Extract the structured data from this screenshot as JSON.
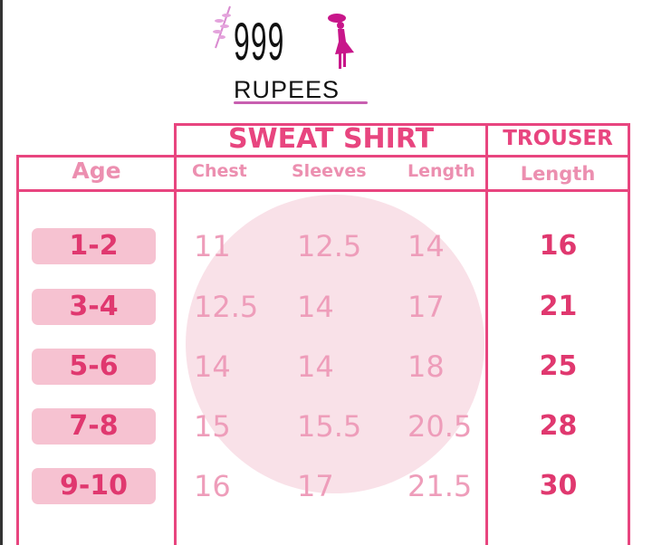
{
  "brand": {
    "number": "999",
    "word": "RUPEES"
  },
  "headers": {
    "sweatshirt": "SWEAT SHIRT",
    "trouser": "TROUSER",
    "age": "Age",
    "chest": "Chest",
    "sleeves": "Sleeves",
    "length": "Length",
    "trouser_length": "Length"
  },
  "rows": [
    {
      "age": "1-2",
      "chest": "11",
      "sleeves": "12.5",
      "length": "14",
      "trouser": "16"
    },
    {
      "age": "3-4",
      "chest": "12.5",
      "sleeves": "14",
      "length": "17",
      "trouser": "21"
    },
    {
      "age": "5-6",
      "chest": "14",
      "sleeves": "14",
      "length": "18",
      "trouser": "25"
    },
    {
      "age": "7-8",
      "chest": "15",
      "sleeves": "15.5",
      "length": "20.5",
      "trouser": "28"
    },
    {
      "age": "9-10",
      "chest": "16",
      "sleeves": "17",
      "length": "21.5",
      "trouser": "30"
    }
  ],
  "colors": {
    "accent": "#e8457f",
    "pill": "#f6c2d1",
    "value": "#ee9dba"
  }
}
